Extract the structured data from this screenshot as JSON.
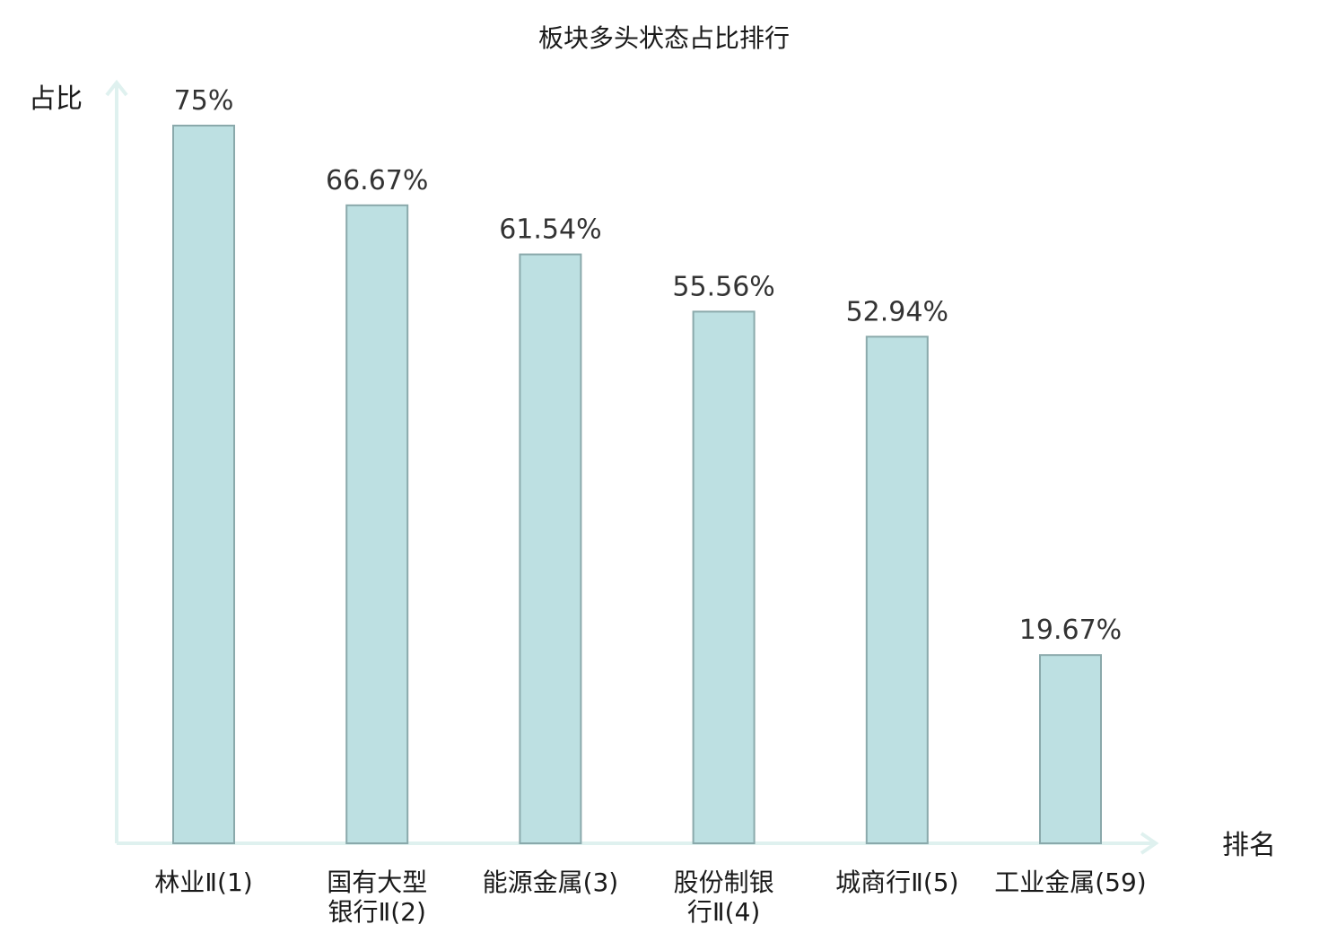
{
  "chart_data": {
    "type": "bar",
    "title": "板块多头状态占比排行",
    "ylabel": "占比",
    "xlabel": "排名",
    "ylim": [
      0,
      80
    ],
    "grid": false,
    "legend": "none",
    "categories": [
      [
        "林业Ⅱ(1)"
      ],
      [
        "国有大型",
        "银行Ⅱ(2)"
      ],
      [
        "能源金属(3)"
      ],
      [
        "股份制银",
        "行Ⅱ(4)"
      ],
      [
        "城商行Ⅱ(5)"
      ],
      [
        "工业金属(59)"
      ]
    ],
    "values": [
      75,
      66.67,
      61.54,
      55.56,
      52.94,
      19.67
    ],
    "value_labels": [
      "75%",
      "66.67%",
      "61.54%",
      "55.56%",
      "52.94%",
      "19.67%"
    ],
    "highlight_index": 5,
    "colors": {
      "bar_fill": "#bde0e2",
      "bar_stroke": "#8aa9ab",
      "axis": "#dff1ef",
      "highlight_text": "#e01010",
      "text": "#1a1a1a"
    }
  }
}
